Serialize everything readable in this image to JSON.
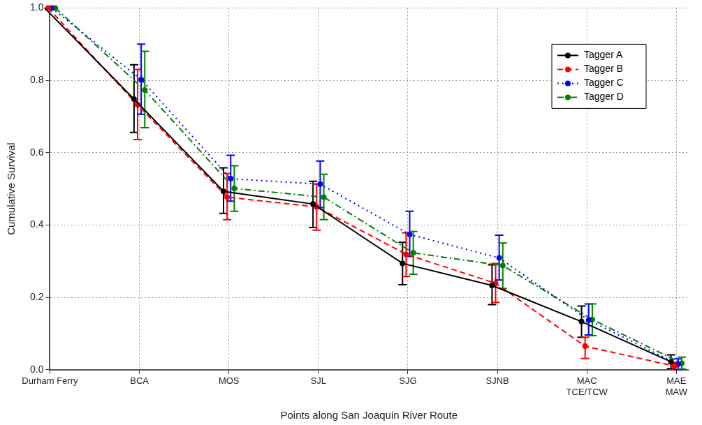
{
  "chart_data": {
    "type": "line",
    "xlabel": "Points along San Joaquin River Route",
    "ylabel": "Cumulative Survival",
    "categories": [
      "Durham Ferry",
      "BCA",
      "MOS",
      "SJL",
      "SJG",
      "SJNB",
      "MAC\nTCE/TCW",
      "MAE\nMAW"
    ],
    "ylim": [
      0,
      1
    ],
    "yticks": [
      {
        "value": 0,
        "label": "0.0"
      },
      {
        "value": 0.2,
        "label": "0.2"
      },
      {
        "value": 0.4,
        "label": "0.4"
      },
      {
        "value": 0.6,
        "label": "0.6"
      },
      {
        "value": 0.8,
        "label": "0.8"
      },
      {
        "value": 1,
        "label": "1.0"
      }
    ],
    "grid": true,
    "legend": "top right",
    "marker": "circle",
    "series": [
      {
        "name": "Tagger A",
        "color": "#000000",
        "line_style": "solid",
        "values": [
          1,
          0.748,
          0.493,
          0.458,
          0.294,
          0.233,
          0.133,
          0.022
        ],
        "errors": [
          null,
          [
            0.656,
            0.843
          ],
          [
            0.432,
            0.558
          ],
          [
            0.393,
            0.521
          ],
          [
            0.235,
            0.352
          ],
          [
            0.18,
            0.29
          ],
          [
            0.09,
            0.176
          ],
          [
            0.003,
            0.041
          ]
        ]
      },
      {
        "name": "Tagger B",
        "color": "#ff0000",
        "line_style": "dashed",
        "values": [
          1,
          0.732,
          0.477,
          0.45,
          0.319,
          0.239,
          0.065,
          0.01
        ],
        "errors": [
          null,
          [
            0.636,
            0.83
          ],
          [
            0.415,
            0.542
          ],
          [
            0.386,
            0.513
          ],
          [
            0.258,
            0.378
          ],
          [
            0.186,
            0.294
          ],
          [
            0.031,
            0.09
          ],
          [
            0,
            0.02
          ]
        ]
      },
      {
        "name": "Tagger C",
        "color": "#0000ff",
        "line_style": "dotted",
        "values": [
          1,
          0.802,
          0.528,
          0.513,
          0.374,
          0.309,
          0.137,
          0.015
        ],
        "errors": [
          null,
          [
            0.706,
            0.9
          ],
          [
            0.466,
            0.593
          ],
          [
            0.448,
            0.577
          ],
          [
            0.313,
            0.438
          ],
          [
            0.248,
            0.372
          ],
          [
            0.096,
            0.182
          ],
          [
            0,
            0.03
          ]
        ]
      },
      {
        "name": "Tagger D",
        "color": "#008000",
        "line_style": "dashdot",
        "values": [
          1,
          0.773,
          0.501,
          0.477,
          0.323,
          0.288,
          0.139,
          0.018
        ],
        "errors": [
          null,
          [
            0.669,
            0.88
          ],
          [
            0.438,
            0.564
          ],
          [
            0.415,
            0.54
          ],
          [
            0.264,
            0.382
          ],
          [
            0.225,
            0.35
          ],
          [
            0.094,
            0.182
          ],
          [
            0.002,
            0.035
          ]
        ]
      }
    ]
  }
}
